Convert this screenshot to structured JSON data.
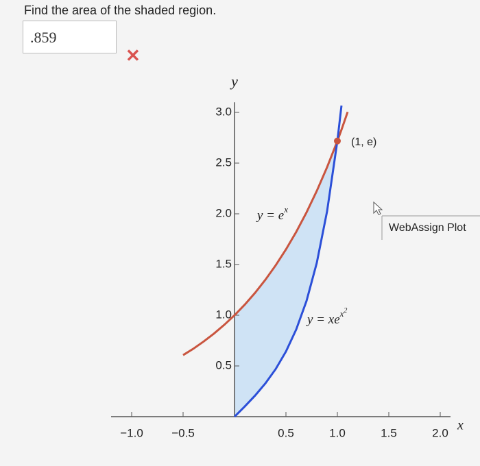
{
  "question": "Find the area of the shaded region.",
  "answer": ".859",
  "tooltip": "WebAssign Plot",
  "chart_data": {
    "type": "line",
    "x_label": "x",
    "y_label": "y",
    "x": [
      -0.5,
      -0.4,
      -0.3,
      -0.2,
      -0.1,
      0,
      0.1,
      0.2,
      0.3,
      0.4,
      0.5,
      0.6,
      0.7,
      0.8,
      0.9,
      1.0,
      1.04,
      1.1
    ],
    "series": [
      {
        "label_parts": [
          "y = e",
          "x"
        ],
        "color": "#c9553f",
        "values": [
          0.607,
          0.67,
          0.741,
          0.819,
          0.905,
          1,
          1.105,
          1.221,
          1.35,
          1.492,
          1.649,
          1.822,
          2.014,
          2.226,
          2.46,
          2.718,
          2.829,
          3.004
        ]
      },
      {
        "label_parts": [
          "y = xe",
          "x",
          "2"
        ],
        "color": "#2b4fd8",
        "values": [
          null,
          null,
          null,
          null,
          null,
          0,
          0.101,
          0.208,
          0.328,
          0.469,
          0.642,
          0.86,
          1.141,
          1.517,
          2.025,
          2.718,
          3.067,
          null
        ]
      }
    ],
    "shade_color": "#cfe3f5",
    "point": {
      "x": 1,
      "y": 2.718,
      "label": "(1, e)",
      "color": "#c9553f"
    },
    "xlim": [
      -1.2,
      2.1
    ],
    "ylim": [
      0,
      3.1
    ],
    "xticks": [
      {
        "value": -1,
        "label": "−1.0"
      },
      {
        "value": -0.5,
        "label": "−0.5"
      },
      0.5,
      {
        "value": 1,
        "label": "1.0"
      },
      1.5,
      {
        "value": 2,
        "label": "2.0"
      }
    ],
    "yticks": [
      0.5,
      {
        "value": 1,
        "label": "1.0"
      },
      1.5,
      {
        "value": 2,
        "label": "2.0"
      },
      2.5,
      {
        "value": 3,
        "label": "3.0"
      }
    ]
  }
}
